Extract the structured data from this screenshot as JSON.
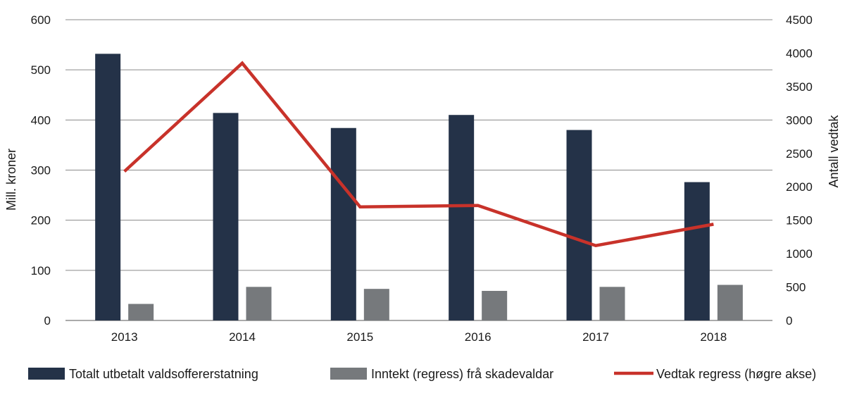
{
  "chart_data": {
    "type": "bar",
    "categories": [
      "2013",
      "2014",
      "2015",
      "2016",
      "2017",
      "2018"
    ],
    "series": [
      {
        "name": "Totalt utbetalt valdsoffererstatning",
        "type": "bar",
        "axis": "left",
        "color": "#243248",
        "values": [
          532,
          414,
          384,
          410,
          380,
          276
        ]
      },
      {
        "name": "Inntekt (regress) frå skadevaldar",
        "type": "bar",
        "axis": "left",
        "color": "#76797c",
        "values": [
          33,
          67,
          63,
          59,
          67,
          71
        ]
      },
      {
        "name": "Vedtak regress (høgre akse)",
        "type": "line",
        "axis": "right",
        "color": "#c8322a",
        "values": [
          2230,
          3850,
          1700,
          1720,
          1120,
          1440
        ]
      }
    ],
    "ylabel": "Mill. kroner",
    "y2label": "Antall vedtak",
    "ylim": [
      0,
      600
    ],
    "y2lim": [
      0,
      4500
    ],
    "yticks": [
      "0",
      "100",
      "200",
      "300",
      "400",
      "500",
      "600"
    ],
    "y2ticks": [
      "0",
      "500",
      "1000",
      "1500",
      "2000",
      "2500",
      "3000",
      "3500",
      "4000",
      "4500"
    ],
    "grid": true,
    "legend_position": "bottom"
  }
}
